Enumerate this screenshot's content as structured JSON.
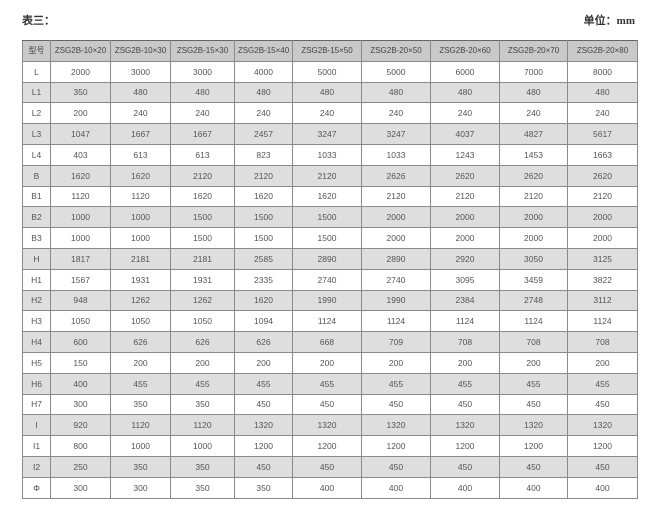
{
  "title": "表三：",
  "unit": "单位：mm",
  "table": {
    "headers": [
      "型号",
      "ZSG2B-10×20",
      "ZSG2B-10×30",
      "ZSG2B-15×30",
      "ZSG2B-15×40",
      "ZSG2B-15×50",
      "ZSG2B-20×50",
      "ZSG2B-20×60",
      "ZSG2B-20×70",
      "ZSG2B-20×80"
    ],
    "rows": [
      [
        "L",
        "2000",
        "3000",
        "3000",
        "4000",
        "5000",
        "5000",
        "6000",
        "7000",
        "8000"
      ],
      [
        "L1",
        "350",
        "480",
        "480",
        "480",
        "480",
        "480",
        "480",
        "480",
        "480"
      ],
      [
        "L2",
        "200",
        "240",
        "240",
        "240",
        "240",
        "240",
        "240",
        "240",
        "240"
      ],
      [
        "L3",
        "1047",
        "1667",
        "1667",
        "2457",
        "3247",
        "3247",
        "4037",
        "4827",
        "5617"
      ],
      [
        "L4",
        "403",
        "613",
        "613",
        "823",
        "1033",
        "1033",
        "1243",
        "1453",
        "1663"
      ],
      [
        "B",
        "1620",
        "1620",
        "2120",
        "2120",
        "2120",
        "2626",
        "2620",
        "2620",
        "2620"
      ],
      [
        "B1",
        "1120",
        "1120",
        "1620",
        "1620",
        "1620",
        "2120",
        "2120",
        "2120",
        "2120"
      ],
      [
        "B2",
        "1000",
        "1000",
        "1500",
        "1500",
        "1500",
        "2000",
        "2000",
        "2000",
        "2000"
      ],
      [
        "B3",
        "1000",
        "1000",
        "1500",
        "1500",
        "1500",
        "2000",
        "2000",
        "2000",
        "2000"
      ],
      [
        "H",
        "1817",
        "2181",
        "2181",
        "2585",
        "2890",
        "2890",
        "2920",
        "3050",
        "3125"
      ],
      [
        "H1",
        "1567",
        "1931",
        "1931",
        "2335",
        "2740",
        "2740",
        "3095",
        "3459",
        "3822"
      ],
      [
        "H2",
        "948",
        "1262",
        "1262",
        "1620",
        "1990",
        "1990",
        "2384",
        "2748",
        "3112"
      ],
      [
        "H3",
        "1050",
        "1050",
        "1050",
        "1094",
        "1124",
        "1124",
        "1124",
        "1124",
        "1124"
      ],
      [
        "H4",
        "600",
        "626",
        "626",
        "626",
        "668",
        "709",
        "708",
        "708",
        "708"
      ],
      [
        "H5",
        "150",
        "200",
        "200",
        "200",
        "200",
        "200",
        "200",
        "200",
        "200"
      ],
      [
        "H6",
        "400",
        "455",
        "455",
        "455",
        "455",
        "455",
        "455",
        "455",
        "455"
      ],
      [
        "H7",
        "300",
        "350",
        "350",
        "450",
        "450",
        "450",
        "450",
        "450",
        "450"
      ],
      [
        "I",
        "920",
        "1120",
        "1120",
        "1320",
        "1320",
        "1320",
        "1320",
        "1320",
        "1320"
      ],
      [
        "I1",
        "800",
        "1000",
        "1000",
        "1200",
        "1200",
        "1200",
        "1200",
        "1200",
        "1200"
      ],
      [
        "I2",
        "250",
        "350",
        "350",
        "450",
        "450",
        "450",
        "450",
        "450",
        "450"
      ],
      [
        "Φ",
        "300",
        "300",
        "350",
        "350",
        "400",
        "400",
        "400",
        "400",
        "400"
      ]
    ]
  }
}
